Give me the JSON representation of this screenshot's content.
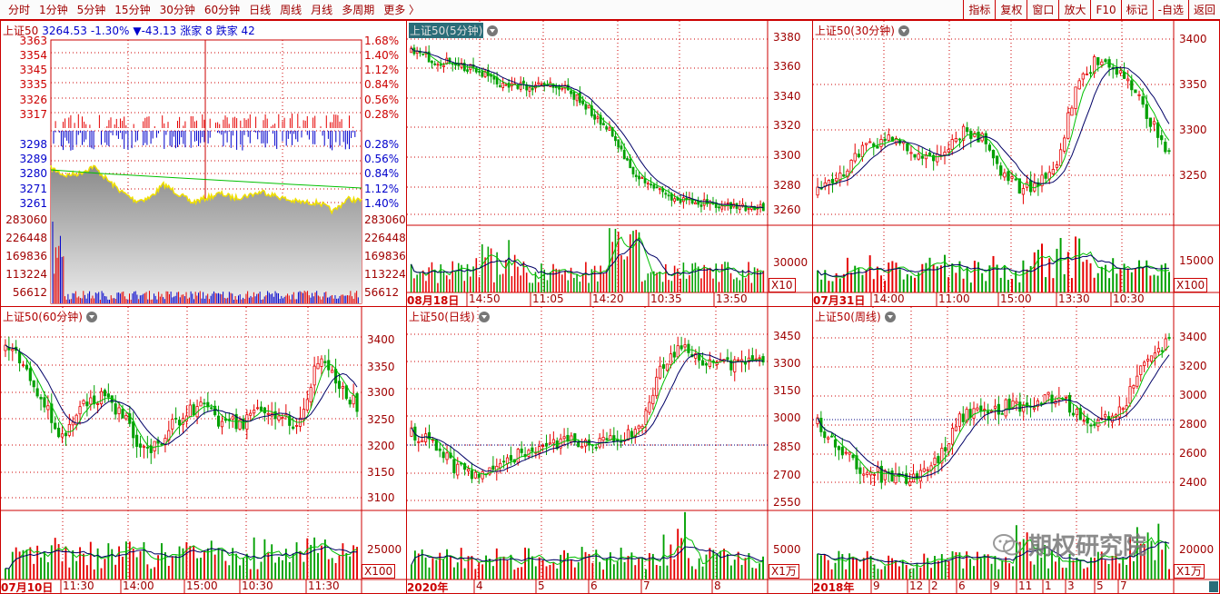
{
  "toolbar": {
    "periods": [
      "分时",
      "1分钟",
      "5分钟",
      "15分钟",
      "30分钟",
      "60分钟",
      "日线",
      "周线",
      "月线",
      "多周期",
      "更多 〉"
    ],
    "right_buttons": [
      "指标",
      "复权",
      "窗口",
      "放大",
      "F10",
      "标记",
      "-自选",
      "返回"
    ]
  },
  "panels": {
    "intraday": {
      "name": "上证50",
      "price": "3264.53",
      "pct": "-1.30%",
      "change": "▼-43.13",
      "up_label": "涨家 8",
      "down_label": "跌家 42",
      "left_axis": [
        "3363",
        "3354",
        "3345",
        "3335",
        "3326",
        "3317",
        "3298",
        "3289",
        "3280",
        "3271",
        "3261"
      ],
      "right_axis": [
        "1.68%",
        "1.40%",
        "1.12%",
        "0.84%",
        "0.56%",
        "0.28%",
        "0.28%",
        "0.56%",
        "0.84%",
        "1.12%",
        "1.40%"
      ],
      "vol_axis": [
        "283060",
        "226448",
        "169836",
        "113224",
        "56612"
      ]
    },
    "m5": {
      "name": "上证50(5分钟)",
      "axis": [
        "3380",
        "3360",
        "3340",
        "3320",
        "3300",
        "3280",
        "3260"
      ],
      "vol_axis": [
        "30000"
      ],
      "mult": "X10",
      "dates": [
        "08月18日",
        "14:50",
        "11:05",
        "14:20",
        "10:35",
        "13:50"
      ]
    },
    "m30": {
      "name": "上证50(30分钟)",
      "axis": [
        "3400",
        "3350",
        "3300",
        "3250"
      ],
      "vol_axis": [
        "15000"
      ],
      "mult": "X100",
      "dates": [
        "07月31日",
        "14:00",
        "11:00",
        "15:00",
        "13:30",
        "10:30"
      ]
    },
    "m60": {
      "name": "上证50(60分钟)",
      "axis": [
        "3400",
        "3350",
        "3300",
        "3250",
        "3200",
        "3150",
        "3100"
      ],
      "vol_axis": [
        "25000"
      ],
      "mult": "X100",
      "dates": [
        "07月10日",
        "11:30",
        "14:00",
        "15:00",
        "10:30",
        "11:30"
      ]
    },
    "daily": {
      "name": "上证50(日线)",
      "axis": [
        "3450",
        "3300",
        "3150",
        "3000",
        "2850",
        "2700",
        "2550"
      ],
      "vol_axis": [
        "5000"
      ],
      "mult": "X1万",
      "dates": [
        "2020年",
        "4",
        "5",
        "6",
        "7",
        "8"
      ]
    },
    "weekly": {
      "name": "上证50(周线)",
      "axis": [
        "3400",
        "3200",
        "3000",
        "2800",
        "2600",
        "2400"
      ],
      "vol_axis": [
        "20000"
      ],
      "mult": "X1万",
      "dates": [
        "2018年",
        "9",
        "12",
        "2",
        "6",
        "9",
        "11",
        "1",
        "3",
        "5",
        "7"
      ]
    }
  },
  "watermark": "期权研究院",
  "colors": {
    "up": "#e60000",
    "down": "#00a000",
    "ma_black": "#000066",
    "ma_green": "#00c000",
    "grid": "#cc0000",
    "intraday_fill": "#9a9a9a",
    "intraday_line": "#f0e000"
  }
}
